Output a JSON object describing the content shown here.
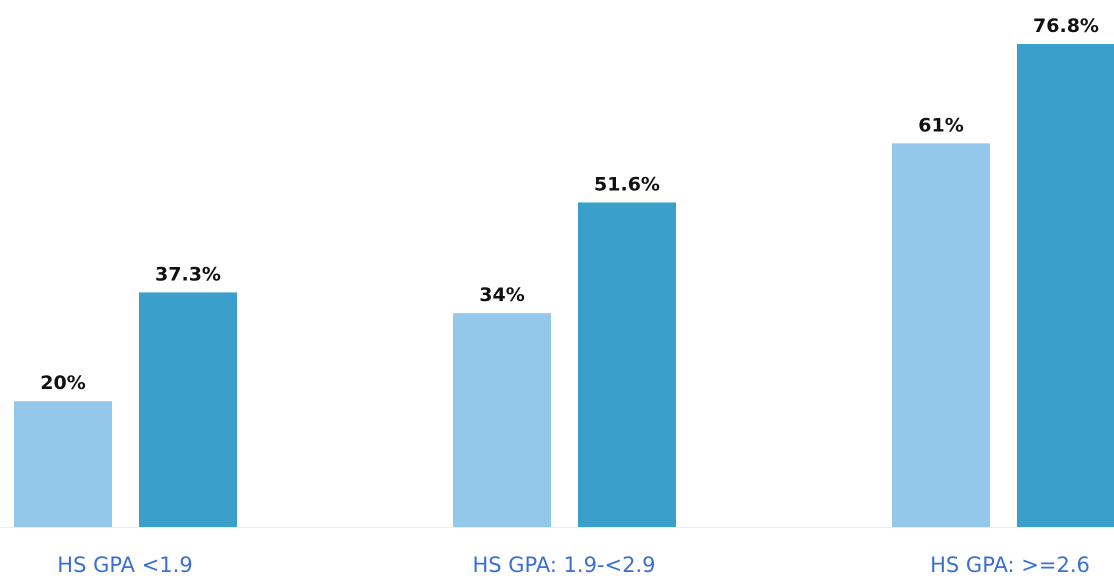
{
  "chart_data": {
    "type": "bar",
    "categories": [
      "HS GPA <1.9",
      "HS GPA: 1.9-<2.9",
      "HS GPA: >=2.6"
    ],
    "series": [
      {
        "color": "#93c8ea",
        "values": [
          20,
          34,
          61
        ],
        "value_labels": [
          "20%",
          "34%",
          "61%"
        ]
      },
      {
        "color": "#3b9fcb",
        "values": [
          37.3,
          51.6,
          76.8
        ],
        "value_labels": [
          "37.3%",
          "51.6%",
          "76.8%"
        ]
      }
    ]
  }
}
